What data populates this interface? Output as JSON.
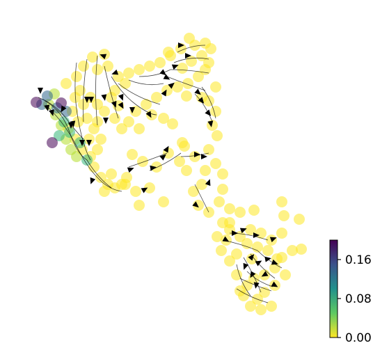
{
  "chart_data": {
    "type": "scatter",
    "title": "",
    "xlabel": "",
    "ylabel": "",
    "axes_visible": false,
    "grid": false,
    "overlay": "velocity-streamlines",
    "colormap": "viridis-reversed",
    "colorbar": {
      "placement": "right",
      "range": [
        0,
        0.2
      ],
      "ticks": [
        0.0,
        0.08,
        0.16
      ],
      "tick_labels": [
        "0.00",
        "0.08",
        "0.16"
      ]
    },
    "marker_alpha": 0.55,
    "arrow_color": "#000000",
    "colors": {
      "low": "#fde725",
      "mid_low": "#b5de2b",
      "mid": "#35b779",
      "mid_high": "#31688e",
      "high": "#440154"
    }
  }
}
